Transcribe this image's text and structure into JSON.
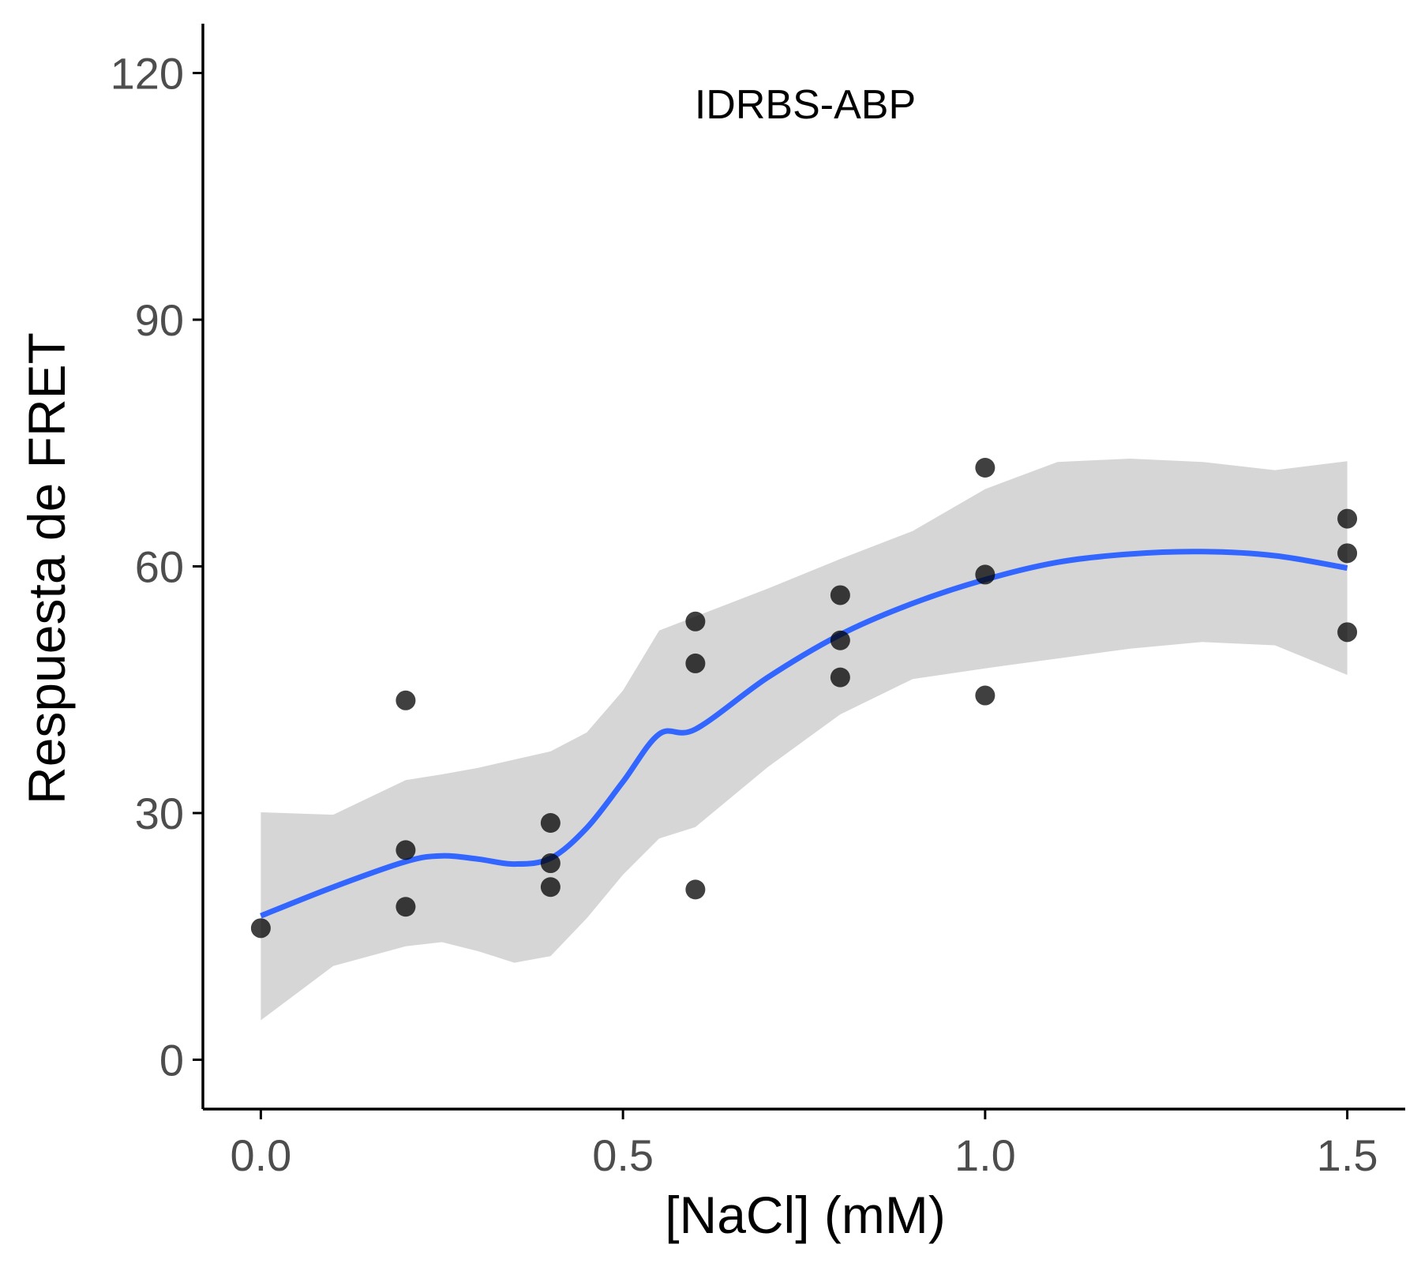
{
  "chart_data": {
    "type": "scatter",
    "annotation": "IDRBS-ABP",
    "xlabel": "[NaCl] (mM)",
    "ylabel": "Respuesta de FRET",
    "xlim": [
      -0.08,
      1.58
    ],
    "ylim": [
      -6,
      126
    ],
    "x_ticks": [
      0.0,
      0.5,
      1.0,
      1.5
    ],
    "x_tick_labels": [
      "0.0",
      "0.5",
      "1.0",
      "1.5"
    ],
    "y_ticks": [
      0,
      30,
      60,
      90,
      120
    ],
    "y_tick_labels": [
      "0",
      "30",
      "60",
      "90",
      "120"
    ],
    "grid": false,
    "legend": "none",
    "points": [
      {
        "x": 0.0,
        "y": 16.0
      },
      {
        "x": 0.2,
        "y": 43.7
      },
      {
        "x": 0.2,
        "y": 25.5
      },
      {
        "x": 0.2,
        "y": 18.6
      },
      {
        "x": 0.4,
        "y": 28.8
      },
      {
        "x": 0.4,
        "y": 23.9
      },
      {
        "x": 0.4,
        "y": 21.0
      },
      {
        "x": 0.6,
        "y": 53.3
      },
      {
        "x": 0.6,
        "y": 48.2
      },
      {
        "x": 0.6,
        "y": 20.7
      },
      {
        "x": 0.8,
        "y": 56.5
      },
      {
        "x": 0.8,
        "y": 51.0
      },
      {
        "x": 0.8,
        "y": 46.5
      },
      {
        "x": 1.0,
        "y": 72.0
      },
      {
        "x": 1.0,
        "y": 59.0
      },
      {
        "x": 1.0,
        "y": 44.3
      },
      {
        "x": 1.5,
        "y": 65.8
      },
      {
        "x": 1.5,
        "y": 61.6
      },
      {
        "x": 1.5,
        "y": 52.0
      }
    ],
    "smooth": {
      "method": "loess",
      "x": [
        0.0,
        0.1,
        0.2,
        0.25,
        0.3,
        0.35,
        0.4,
        0.45,
        0.5,
        0.55,
        0.6,
        0.7,
        0.8,
        0.9,
        1.0,
        1.1,
        1.2,
        1.3,
        1.4,
        1.5
      ],
      "y": [
        17.5,
        21.0,
        24.1,
        24.8,
        24.4,
        23.8,
        24.5,
        28.2,
        33.8,
        39.6,
        40.2,
        46.5,
        51.7,
        55.5,
        58.4,
        60.5,
        61.5,
        61.8,
        61.3,
        59.8
      ],
      "lower": [
        4.8,
        11.4,
        13.8,
        14.3,
        13.2,
        11.8,
        12.6,
        17.2,
        22.5,
        26.9,
        28.3,
        35.6,
        42.0,
        46.3,
        47.6,
        48.8,
        50.0,
        50.8,
        50.4,
        46.8
      ],
      "upper": [
        30.1,
        29.8,
        34.0,
        34.7,
        35.5,
        36.5,
        37.5,
        39.8,
        44.9,
        52.2,
        53.9,
        57.3,
        60.9,
        64.3,
        69.4,
        72.7,
        73.1,
        72.7,
        71.7,
        72.8
      ]
    },
    "colors": {
      "points": "#000000",
      "line": "#3366ff",
      "ribbon": "#999999",
      "axis": "#000000",
      "tick_label": "#4d4d4d"
    }
  }
}
